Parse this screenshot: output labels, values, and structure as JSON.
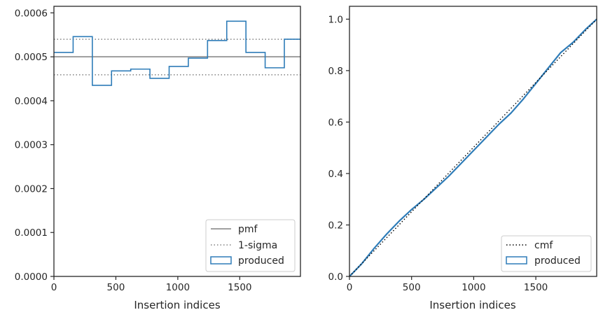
{
  "chart_data": [
    {
      "type": "histogram-step",
      "xlabel": "Insertion indices",
      "ylabel": "",
      "xlim": [
        0,
        1990
      ],
      "ylim": [
        0,
        0.000615
      ],
      "xticks": [
        0,
        500,
        1000,
        1500
      ],
      "xtick_labels": [
        "0",
        "500",
        "1000",
        "1500"
      ],
      "yticks": [
        0,
        0.0001,
        0.0002,
        0.0003,
        0.0004,
        0.0005,
        0.0006
      ],
      "ytick_labels": [
        "0.0000",
        "0.0001",
        "0.0002",
        "0.0003",
        "0.0004",
        "0.0005",
        "0.0006"
      ],
      "grid": false,
      "legend_position": "lower-right",
      "pmf": 0.0005,
      "sigma_band": [
        0.000459,
        0.00054
      ],
      "bin_edges": [
        0,
        155,
        310,
        465,
        620,
        775,
        930,
        1085,
        1240,
        1395,
        1550,
        1705,
        1860,
        1990
      ],
      "bin_values": [
        0.00051,
        0.000546,
        0.000435,
        0.000468,
        0.000472,
        0.000451,
        0.000478,
        0.000497,
        0.000537,
        0.000581,
        0.00051,
        0.000475,
        0.00054
      ],
      "series": [
        {
          "name": "pmf",
          "color": "#808080",
          "style": "solid"
        },
        {
          "name": "1-sigma",
          "color": "#808080",
          "style": "dotted"
        },
        {
          "name": "produced",
          "color": "#2e7cb8",
          "style": "step"
        }
      ]
    },
    {
      "type": "line",
      "xlabel": "Insertion indices",
      "ylabel": "",
      "xlim": [
        0,
        1990
      ],
      "ylim": [
        0,
        1.05
      ],
      "xticks": [
        0,
        500,
        1000,
        1500
      ],
      "xtick_labels": [
        "0",
        "500",
        "1000",
        "1500"
      ],
      "yticks": [
        0,
        0.2,
        0.4,
        0.6,
        0.8,
        1.0
      ],
      "ytick_labels": [
        "0.0",
        "0.2",
        "0.4",
        "0.6",
        "0.8",
        "1.0"
      ],
      "grid": false,
      "legend_position": "lower-right",
      "cmf": {
        "x": [
          0,
          1990
        ],
        "y": [
          0,
          1.0
        ]
      },
      "produced": {
        "x": [
          0,
          100,
          200,
          300,
          400,
          500,
          600,
          700,
          800,
          900,
          1000,
          1100,
          1200,
          1300,
          1400,
          1500,
          1600,
          1700,
          1800,
          1900,
          1990
        ],
        "y": [
          0,
          0.05,
          0.11,
          0.165,
          0.215,
          0.26,
          0.3,
          0.345,
          0.39,
          0.44,
          0.49,
          0.54,
          0.59,
          0.635,
          0.69,
          0.75,
          0.81,
          0.87,
          0.91,
          0.96,
          1.0
        ]
      },
      "series": [
        {
          "name": "cmf",
          "color": "#000000",
          "style": "dotted"
        },
        {
          "name": "produced",
          "color": "#2e7cb8",
          "style": "solid"
        }
      ]
    }
  ]
}
